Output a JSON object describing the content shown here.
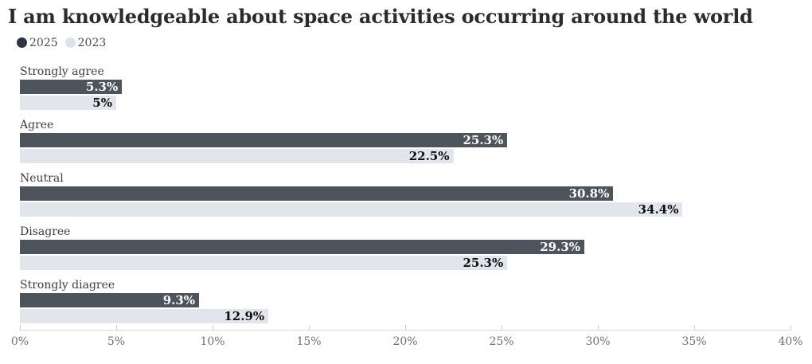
{
  "title": "I am knowledgeable about space activities occurring around the world",
  "legend": {
    "items": [
      {
        "label": "2025",
        "color": "#2d3642"
      },
      {
        "label": "2023",
        "color": "#dce2ea"
      }
    ]
  },
  "chart_data": {
    "type": "bar",
    "orientation": "horizontal",
    "title": "I am knowledgeable about space activities occurring around the world",
    "categories": [
      "Strongly agree",
      "Agree",
      "Neutral",
      "Disagree",
      "Strongly diagree"
    ],
    "series": [
      {
        "name": "2025",
        "color": "#4e545c",
        "label_color": "#ffffff",
        "values": [
          5.3,
          25.3,
          30.8,
          29.3,
          9.3
        ],
        "labels": [
          "5.3%",
          "25.3%",
          "30.8%",
          "29.3%",
          "9.3%"
        ]
      },
      {
        "name": "2023",
        "color": "#e2e6ec",
        "label_color": "#0d0d0d",
        "values": [
          5,
          22.5,
          34.4,
          25.3,
          12.9
        ],
        "labels": [
          "5%",
          "22.5%",
          "34.4%",
          "25.3%",
          "12.9%"
        ]
      }
    ],
    "x_axis": {
      "min": 0,
      "max": 40,
      "tick_step": 5,
      "tick_labels": [
        "0%",
        "5%",
        "10%",
        "15%",
        "20%",
        "25%",
        "30%",
        "35%",
        "40%"
      ]
    },
    "grid": false,
    "legend_position": "top-left",
    "value_labels": "inside-end"
  }
}
